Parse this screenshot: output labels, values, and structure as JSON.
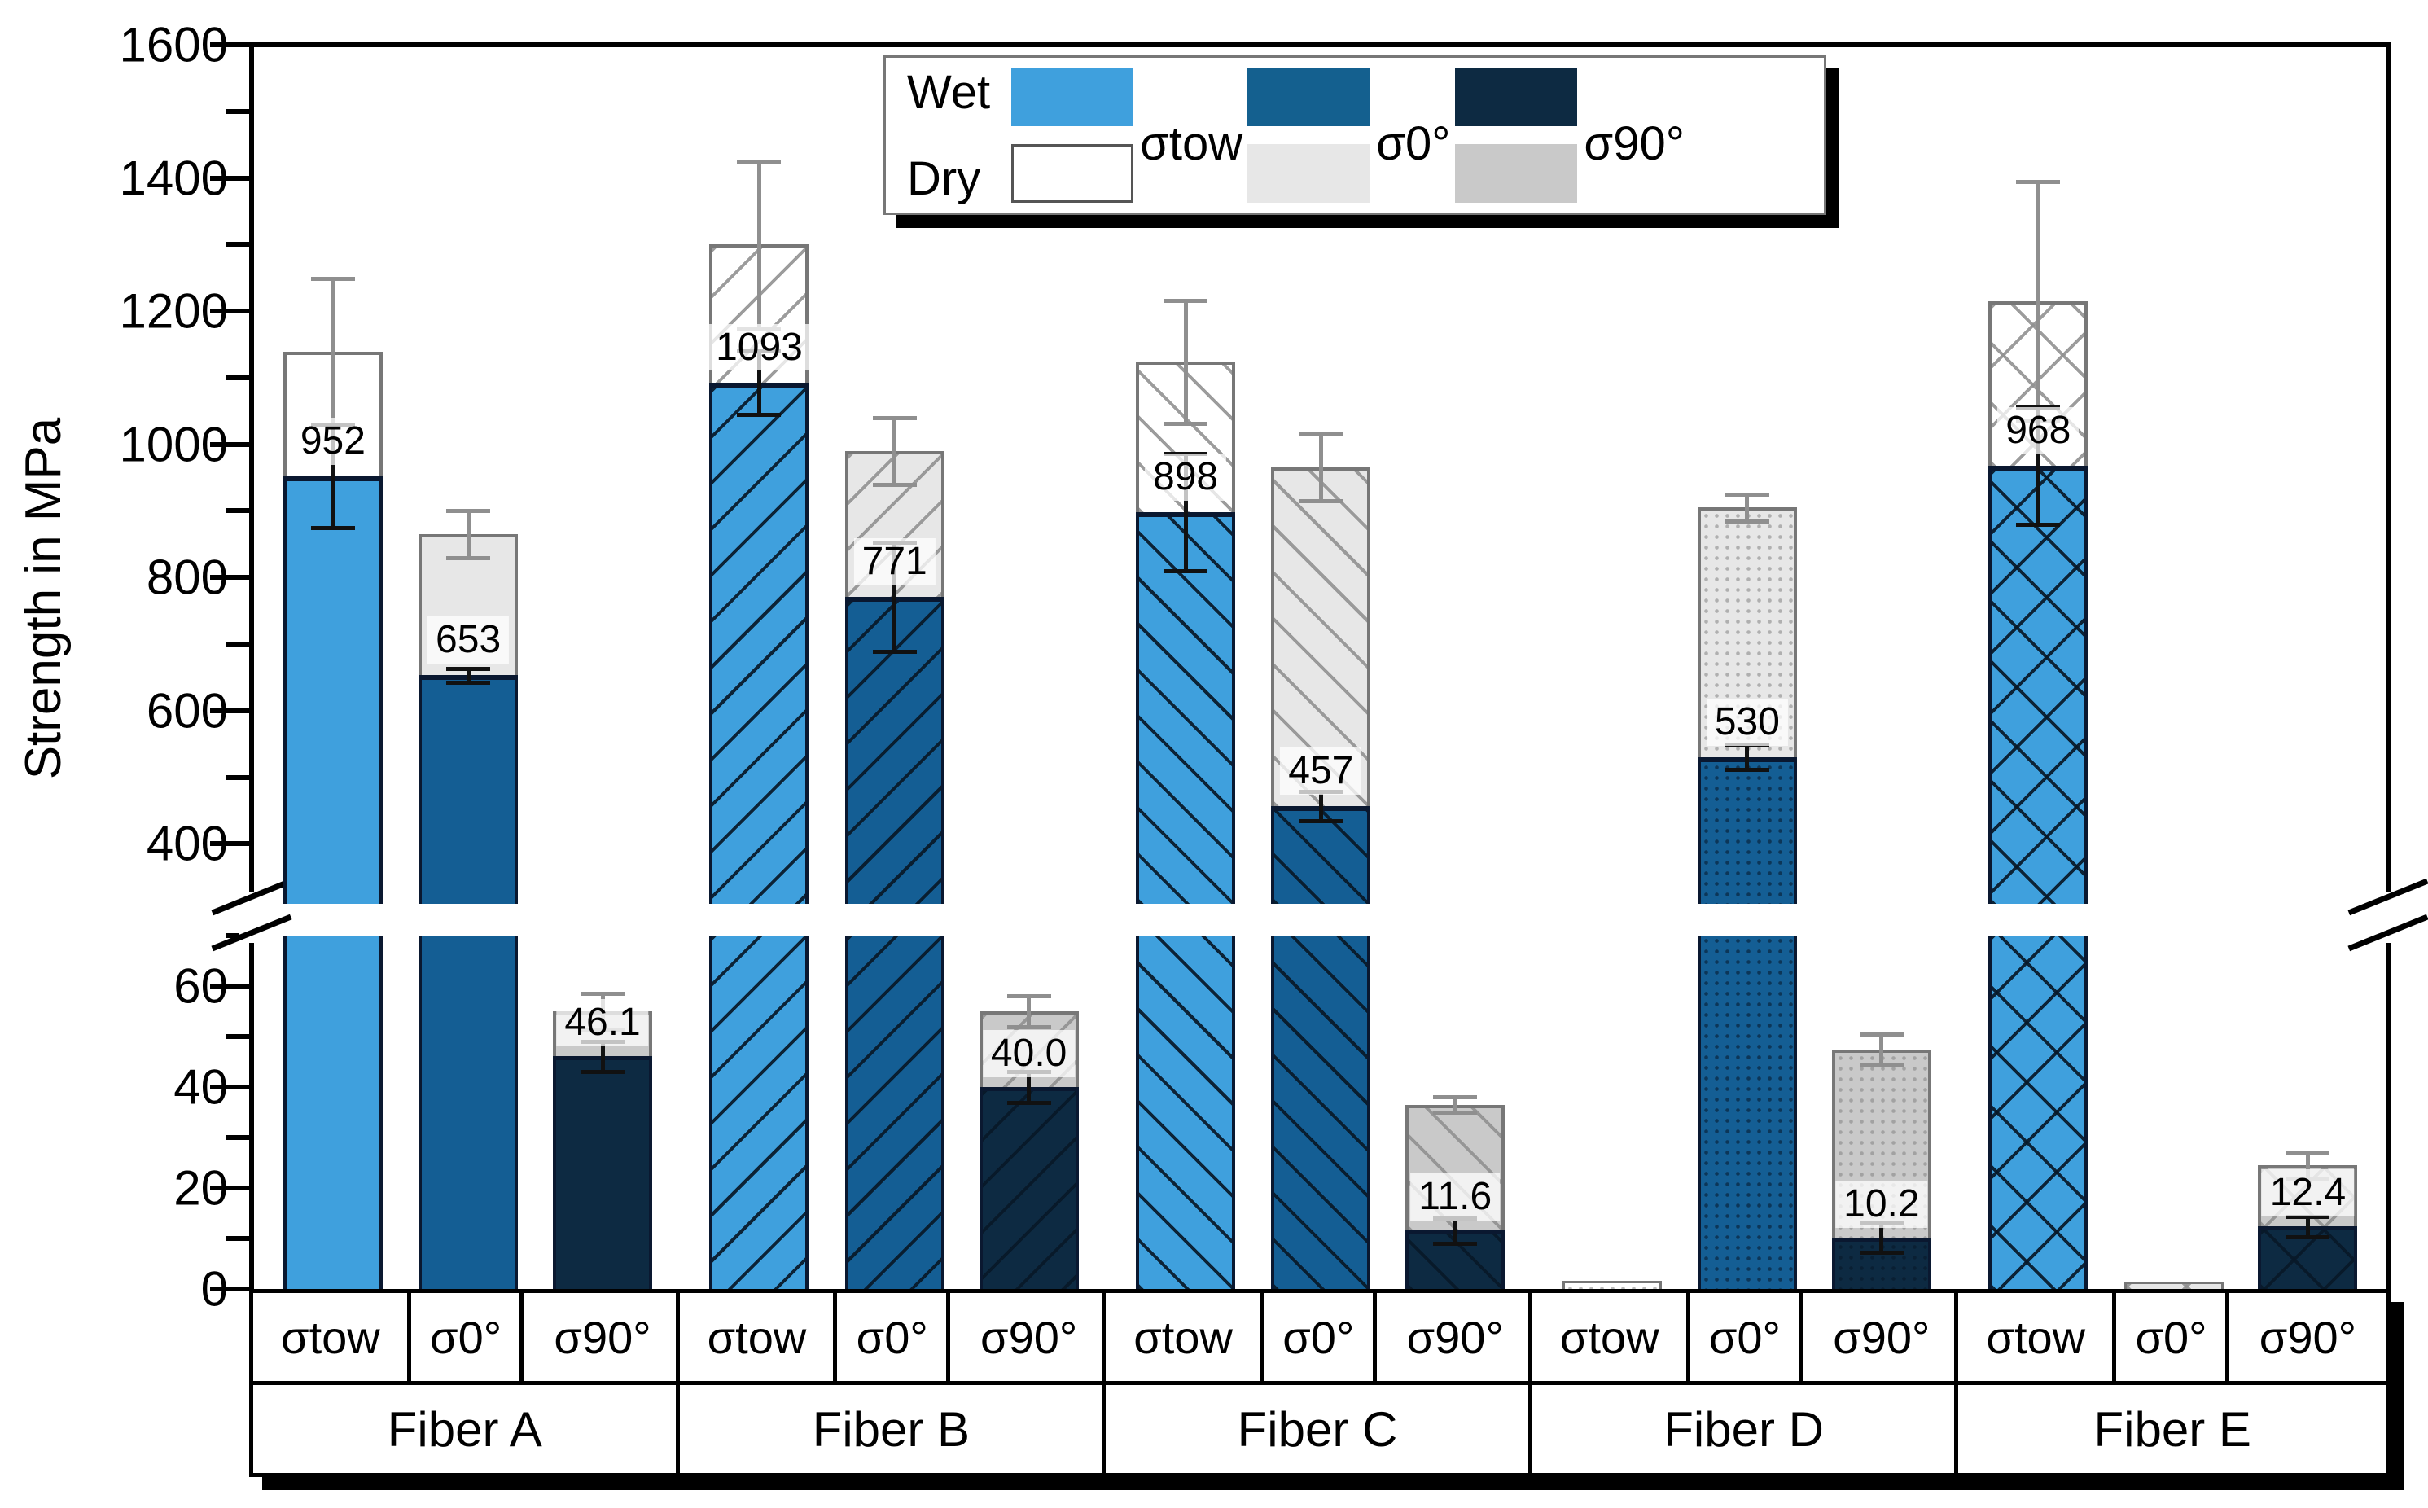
{
  "chart_data": {
    "type": "bar",
    "title": "",
    "ylabel": "Strength in MPa",
    "unit": "MPa",
    "grid": false,
    "axis": {
      "upper_range": [
        310,
        1600
      ],
      "lower_range": [
        0,
        70
      ],
      "upper_major_ticks": [
        400,
        600,
        800,
        1000,
        1200,
        1400,
        1600
      ],
      "upper_minor_ticks": [
        500,
        700,
        900,
        1100,
        1300,
        1500
      ],
      "lower_major_ticks": [
        0,
        20,
        40,
        60
      ],
      "lower_minor_ticks": [
        10,
        30,
        50,
        70
      ],
      "broken_axis": true
    },
    "legend": {
      "position": "top-center",
      "wet_label": "Wet",
      "dry_label": "Dry",
      "columns": [
        "σtow",
        "σ0°",
        "σ90°"
      ],
      "wet_colors": [
        "#3fa0dd",
        "#14608f",
        "#0d2a42"
      ],
      "dry_colors": [
        "#ffffff",
        "#e7e7e7",
        "#c9c9c9"
      ]
    },
    "colors": {
      "wet_tow": "#3fa0dd",
      "wet_0": "#145e94",
      "wet_90": "#0d2a42",
      "dry_tow": "#ffffff",
      "dry_0": "#e7e7e7",
      "dry_90": "#c9c9c9",
      "wet_error": "#111111",
      "dry_error": "#8f8f8f",
      "bar_edge_wet": "#0a1830",
      "bar_edge_dry": "#777777"
    },
    "groups": [
      {
        "label": "Fiber A",
        "pattern": "solid",
        "bars": [
          {
            "measure": "σtow",
            "wet": 952,
            "wet_err": 77,
            "dry": 1139,
            "dry_err": 110,
            "value_label": "952"
          },
          {
            "measure": "σ0°",
            "wet": 653,
            "wet_err": 10,
            "dry": 865,
            "dry_err": 35,
            "value_label": "653"
          },
          {
            "measure": "σ90°",
            "wet": 46.1,
            "wet_err": 3,
            "dry": 55,
            "dry_err": 3.5,
            "value_label": "46.1"
          }
        ]
      },
      {
        "label": "Fiber B",
        "pattern": "diag-up",
        "bars": [
          {
            "measure": "σtow",
            "wet": 1093,
            "wet_err": 48,
            "dry": 1300,
            "dry_err": 125,
            "value_label": "1093"
          },
          {
            "measure": "σ0°",
            "wet": 771,
            "wet_err": 82,
            "dry": 990,
            "dry_err": 50,
            "value_label": "771"
          },
          {
            "measure": "σ90°",
            "wet": 40.0,
            "wet_err": 3,
            "dry": 55,
            "dry_err": 3,
            "value_label": "40.0"
          }
        ]
      },
      {
        "label": "Fiber C",
        "pattern": "diag-down",
        "bars": [
          {
            "measure": "σtow",
            "wet": 898,
            "wet_err": 88,
            "dry": 1124,
            "dry_err": 92,
            "value_label": "898"
          },
          {
            "measure": "σ0°",
            "wet": 457,
            "wet_err": 22,
            "dry": 965,
            "dry_err": 50,
            "value_label": "457"
          },
          {
            "measure": "σ90°",
            "wet": 11.6,
            "wet_err": 2.5,
            "dry": 36.5,
            "dry_err": 1.5,
            "value_label": "11.6"
          }
        ]
      },
      {
        "label": "Fiber D",
        "pattern": "dots",
        "bars": [
          {
            "measure": "σtow",
            "wet": null,
            "wet_err": null,
            "dry": 1.6,
            "dry_err": null,
            "value_label": ""
          },
          {
            "measure": "σ0°",
            "wet": 530,
            "wet_err": 18,
            "dry": 905,
            "dry_err": 20,
            "value_label": "530"
          },
          {
            "measure": "σ90°",
            "wet": 10.2,
            "wet_err": 3,
            "dry": 47.5,
            "dry_err": 3,
            "value_label": "10.2"
          }
        ]
      },
      {
        "label": "Fiber E",
        "pattern": "cross",
        "bars": [
          {
            "measure": "σtow",
            "wet": 968,
            "wet_err": 88,
            "dry": 1215,
            "dry_err": 180,
            "value_label": "968"
          },
          {
            "measure": "σ0°",
            "wet": null,
            "wet_err": null,
            "dry": 1.5,
            "dry_err": null,
            "value_label": ""
          },
          {
            "measure": "σ90°",
            "wet": 12.4,
            "wet_err": 2,
            "dry": 24.5,
            "dry_err": 2.5,
            "value_label": "12.4"
          }
        ]
      }
    ]
  }
}
